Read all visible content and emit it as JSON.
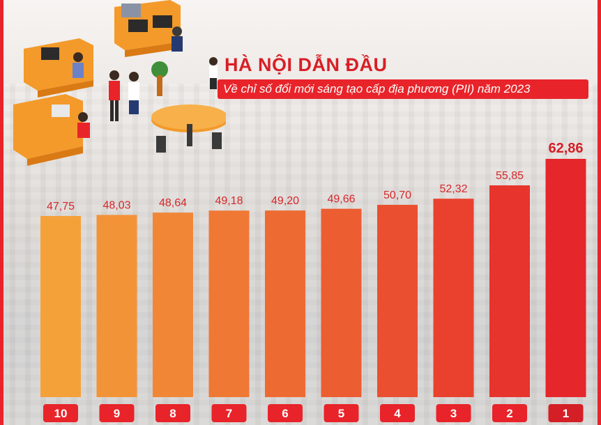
{
  "header": {
    "title": "HÀ NỘI DẪN ĐẦU",
    "subtitle": "Về chỉ số đổi mới sáng tạo cấp địa phương (PII) năm 2023"
  },
  "colors": {
    "accent": "#e8242a",
    "bar_light": "#f5a13a",
    "bar_dark": "#e5262b"
  },
  "illustration": {
    "icon": "office-workers-illustration"
  },
  "chart_data": {
    "type": "bar",
    "title": "HÀ NỘI DẪN ĐẦU",
    "subtitle": "Về chỉ số đổi mới sáng tạo cấp địa phương (PII) năm 2023",
    "categories": [
      "10",
      "9",
      "8",
      "7",
      "6",
      "5",
      "4",
      "3",
      "2",
      "1"
    ],
    "values": [
      47.75,
      48.03,
      48.64,
      49.18,
      49.2,
      49.66,
      50.7,
      52.32,
      55.85,
      62.86
    ],
    "value_labels": [
      "47,75",
      "48,03",
      "48,64",
      "49,18",
      "49,20",
      "49,66",
      "50,70",
      "52,32",
      "55,85",
      "62,86"
    ],
    "highlight_index": 9,
    "xlabel": "",
    "ylabel": "",
    "grid": false,
    "legend": "none"
  }
}
